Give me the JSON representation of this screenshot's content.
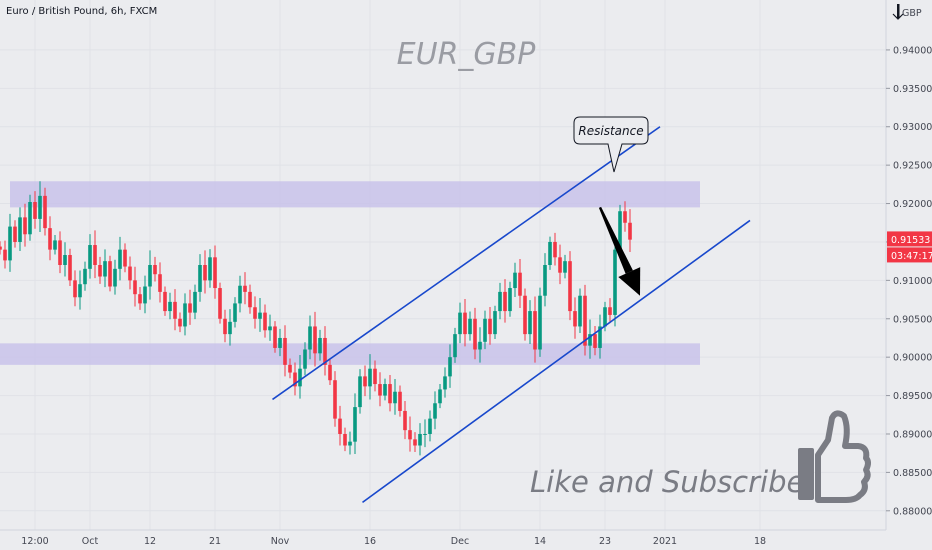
{
  "header": {
    "symbol_label": "Euro / British Pound, 6h, FXCM",
    "currency": "GBP"
  },
  "watermark": "EUR_GBP",
  "annotation": {
    "text": "Resistance"
  },
  "cta": {
    "text": "Like and Subscribe!",
    "icon": "thumbs-up-icon"
  },
  "price_tags": {
    "last_price": "0.91533",
    "countdown": "03:47:17",
    "color": "#f23645"
  },
  "colors": {
    "up": "#089981",
    "down": "#f23645",
    "zone": "#c7c0ea",
    "channel": "#1848cc",
    "arrow": "#000000"
  },
  "chart_data": {
    "type": "candlestick",
    "title": "",
    "xlabel": "",
    "ylabel": "",
    "ylim": [
      0.8775,
      0.9465
    ],
    "y_ticks": [
      "0.94000",
      "0.93500",
      "0.93000",
      "0.92500",
      "0.92000",
      "0.91500",
      "0.91000",
      "0.90500",
      "0.90000",
      "0.89500",
      "0.89000",
      "0.88500",
      "0.88000"
    ],
    "x_ticks": [
      {
        "label": "12:00",
        "bar": 7
      },
      {
        "label": "Oct",
        "bar": 18
      },
      {
        "label": "12",
        "bar": 30
      },
      {
        "label": "21",
        "bar": 43
      },
      {
        "label": "Nov",
        "bar": 56
      },
      {
        "label": "16",
        "bar": 74
      },
      {
        "label": "Dec",
        "bar": 92
      },
      {
        "label": "14",
        "bar": 108
      },
      {
        "label": "23",
        "bar": 121
      },
      {
        "label": "2021",
        "bar": 133
      },
      {
        "label": "18",
        "bar": 152
      }
    ],
    "zones": [
      {
        "name": "resistance",
        "top": 0.9229,
        "bottom": 0.9195,
        "bar_start": 2,
        "bar_end": 140
      },
      {
        "name": "support",
        "top": 0.9018,
        "bottom": 0.899,
        "bar_start": 0,
        "bar_end": 140
      }
    ],
    "trendlines": [
      {
        "from": {
          "bar": 54.5,
          "price": 0.8945
        },
        "to": {
          "bar": 132,
          "price": 0.93
        }
      },
      {
        "from": {
          "bar": 72.5,
          "price": 0.8811
        },
        "to": {
          "bar": 150,
          "price": 0.9178
        }
      }
    ],
    "arrow": {
      "from": {
        "bar": 120,
        "price": 0.9195
      },
      "to": {
        "bar": 128,
        "price": 0.908
      }
    },
    "closes": [
      0.914,
      0.9126,
      0.917,
      0.915,
      0.9182,
      0.916,
      0.9202,
      0.918,
      0.921,
      0.9168,
      0.914,
      0.9152,
      0.912,
      0.9133,
      0.91,
      0.9078,
      0.9095,
      0.9115,
      0.9146,
      0.912,
      0.9105,
      0.9125,
      0.9092,
      0.9115,
      0.914,
      0.9118,
      0.91,
      0.9082,
      0.907,
      0.9092,
      0.912,
      0.9108,
      0.9085,
      0.906,
      0.9072,
      0.905,
      0.904,
      0.907,
      0.9058,
      0.9085,
      0.912,
      0.91,
      0.913,
      0.909,
      0.905,
      0.903,
      0.9046,
      0.907,
      0.9093,
      0.9085,
      0.9065,
      0.905,
      0.9058,
      0.9035,
      0.904,
      0.9012,
      0.9025,
      0.899,
      0.898,
      0.8962,
      0.8985,
      0.901,
      0.904,
      0.9005,
      0.9025,
      0.899,
      0.897,
      0.892,
      0.89,
      0.8885,
      0.889,
      0.8935,
      0.8975,
      0.8962,
      0.8985,
      0.8965,
      0.895,
      0.8965,
      0.894,
      0.8955,
      0.893,
      0.8905,
      0.8893,
      0.8885,
      0.89,
      0.89,
      0.892,
      0.894,
      0.8958,
      0.8975,
      0.9,
      0.903,
      0.9058,
      0.903,
      0.905,
      0.901,
      0.902,
      0.905,
      0.903,
      0.906,
      0.9085,
      0.906,
      0.909,
      0.911,
      0.908,
      0.903,
      0.906,
      0.901,
      0.908,
      0.912,
      0.915,
      0.913,
      0.911,
      0.9125,
      0.906,
      0.904,
      0.908,
      0.9015,
      0.903,
      0.9012,
      0.904,
      0.9065,
      0.9055,
      0.914,
      0.919,
      0.9175,
      0.9153
    ]
  }
}
